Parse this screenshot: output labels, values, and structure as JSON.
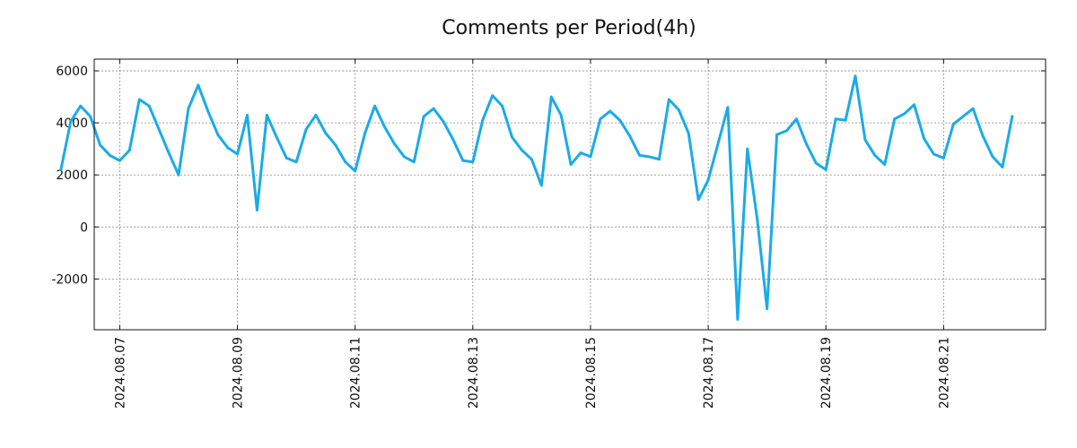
{
  "chart_data": {
    "type": "line",
    "title": "Comments per Period(4h)",
    "xlabel": "",
    "ylabel": "",
    "x_tick_labels": [
      "2024.08.07",
      "2024.08.09",
      "2024.08.11",
      "2024.08.13",
      "2024.08.15",
      "2024.08.17",
      "2024.08.19",
      "2024.08.21"
    ],
    "x_tick_index": [
      6,
      18,
      30,
      42,
      54,
      66,
      78,
      90
    ],
    "xlim_index": [
      3.4,
      100.4
    ],
    "y_ticks": [
      6000,
      4000,
      2000,
      0,
      -2000
    ],
    "y_tick_labels": [
      "6000",
      "4000",
      "2000",
      "0",
      "-2000"
    ],
    "ylim": [
      -3950,
      6450
    ],
    "grid": true,
    "line_color": "#1AABE8",
    "series": [
      {
        "name": "Comments",
        "values": [
          2200,
          4050,
          4650,
          4250,
          3150,
          2750,
          2550,
          2950,
          4900,
          4650,
          3750,
          2850,
          2000,
          4550,
          5450,
          4450,
          3550,
          3050,
          2800,
          4300,
          650,
          4300,
          3450,
          2650,
          2500,
          3750,
          4300,
          3600,
          3150,
          2500,
          2150,
          3600,
          4650,
          3850,
          3200,
          2700,
          2500,
          4250,
          4550,
          4050,
          3350,
          2550,
          2500,
          4100,
          5050,
          4650,
          3450,
          2950,
          2600,
          1600,
          5000,
          4300,
          2400,
          2850,
          2700,
          4150,
          4450,
          4100,
          3500,
          2750,
          2700,
          2600,
          4900,
          4500,
          3600,
          1050,
          1800,
          3200,
          4600,
          -3550,
          3000,
          300,
          -3150,
          3550,
          3700,
          4150,
          3200,
          2450,
          2200,
          4150,
          4100,
          5800,
          3350,
          2750,
          2400,
          4150,
          4350,
          4700,
          3400,
          2800,
          2650,
          3950,
          4250,
          4550,
          3500,
          2700,
          2300,
          4250
        ]
      }
    ]
  }
}
